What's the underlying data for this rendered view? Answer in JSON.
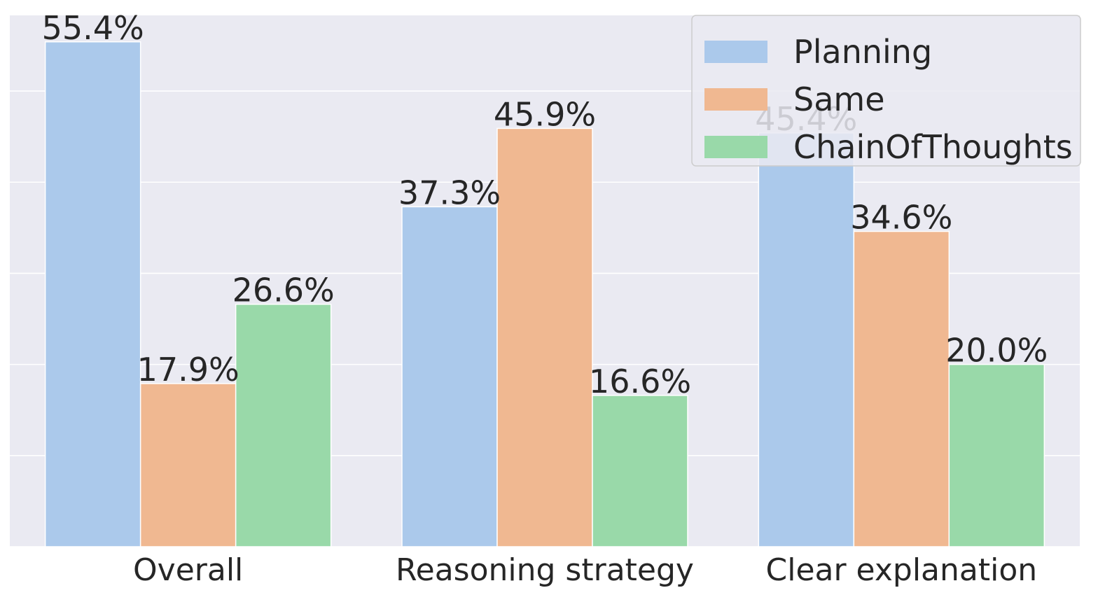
{
  "chart_data": {
    "type": "bar",
    "categories": [
      "Overall",
      "Reasoning strategy",
      "Clear explanation"
    ],
    "series": [
      {
        "name": "Planning",
        "color": "#abc9eb",
        "values": [
          55.4,
          37.3,
          45.4
        ],
        "labels": [
          "55.4%",
          "37.3%",
          "45.4%"
        ]
      },
      {
        "name": "Same",
        "color": "#f0b891",
        "values": [
          17.9,
          45.9,
          34.6
        ],
        "labels": [
          "17.9%",
          "45.9%",
          "34.6%"
        ]
      },
      {
        "name": "ChainOfThoughts",
        "color": "#99d9a9",
        "values": [
          26.6,
          16.6,
          20.0
        ],
        "labels": [
          "26.6%",
          "16.6%",
          "20.0%"
        ]
      }
    ],
    "ylim": [
      0,
      58.3
    ],
    "yticks": [
      0,
      10,
      20,
      30,
      40,
      50
    ],
    "grid": true,
    "legend_position": "top-right",
    "background_color": "#eaeaf2",
    "grid_color": "#ffffff"
  }
}
